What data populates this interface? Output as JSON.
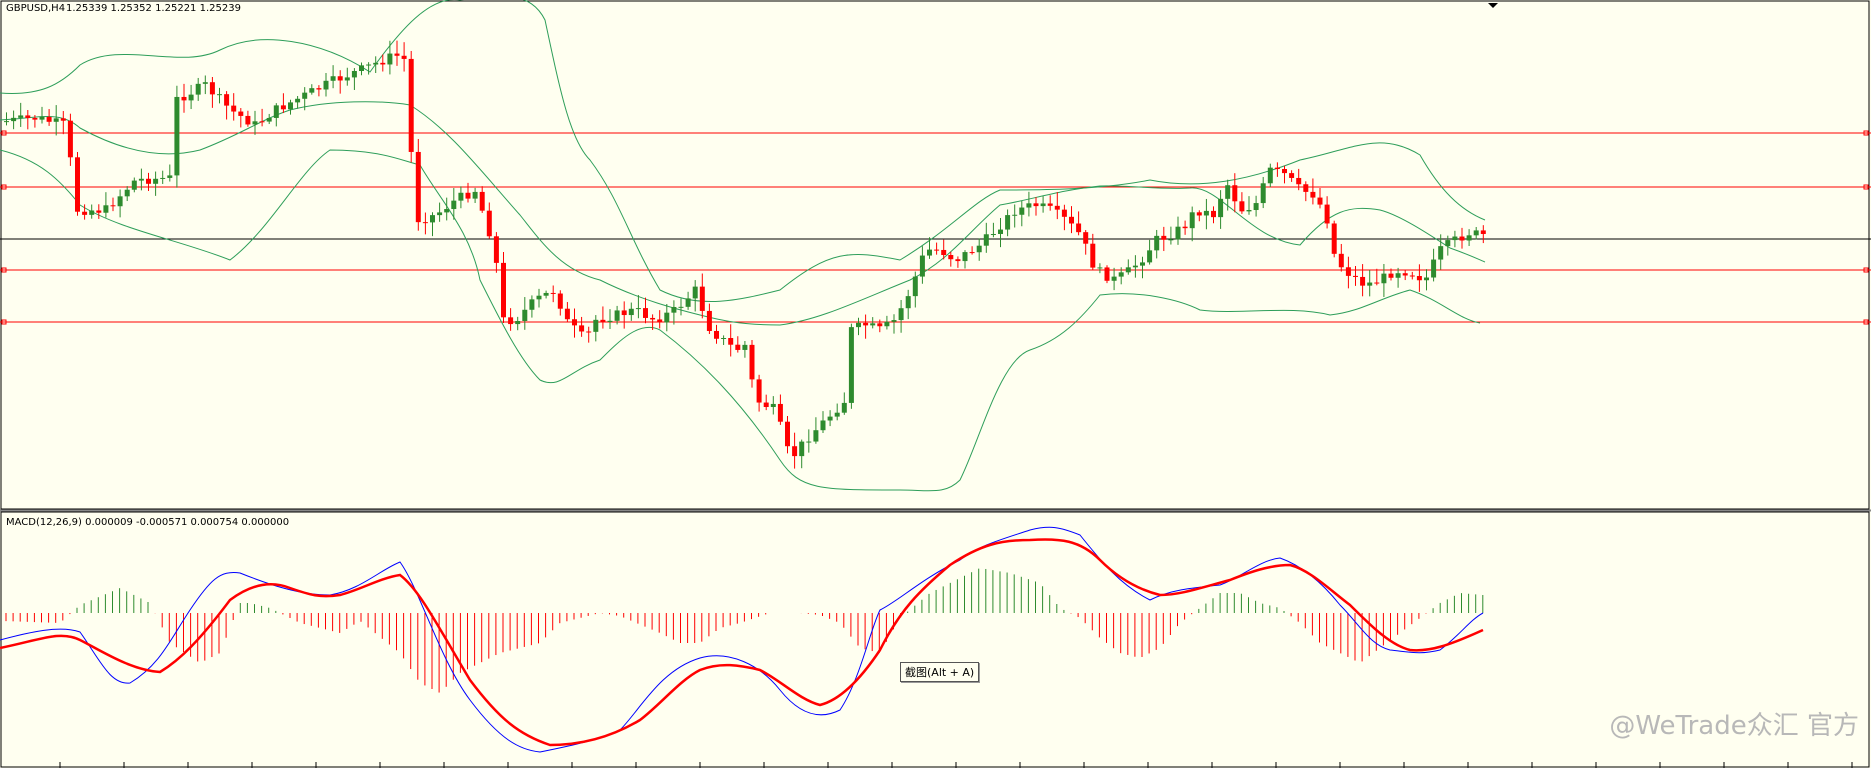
{
  "chart": {
    "symbol": "GBPUSD,H4",
    "ohlc": "1.25339 1.25352 1.25221 1.25239",
    "bg_color": "#fffff0",
    "bull_color": "#2e8b2e",
    "bear_color": "#ff0000",
    "band_color": "#2e9e5a",
    "hline_color": "#ff0000",
    "price_line_color": "#000000"
  },
  "indicator": {
    "label": "MACD(12,26,9) 0.000009 -0.000571 0.000754 0.000000",
    "macd_color": "#0000ff",
    "signal_color": "#ff0000"
  },
  "tooltip": {
    "text": "截图(Alt + A)"
  },
  "watermark": {
    "text": "@WeTrade众汇 官方"
  },
  "chart_data": {
    "type": "candlestick",
    "title": "GBPUSD,H4",
    "notes": "Candlestick chart with Bollinger Bands, horizontal levels and MACD sub-window; no price axis labels visible",
    "ohlc_last": {
      "open": 1.25339,
      "high": 1.25352,
      "low": 1.25221,
      "close": 1.25239
    },
    "macd": {
      "params": "12,26,9",
      "values": [
        9e-06,
        -0.000571,
        0.000754,
        0.0
      ]
    }
  }
}
